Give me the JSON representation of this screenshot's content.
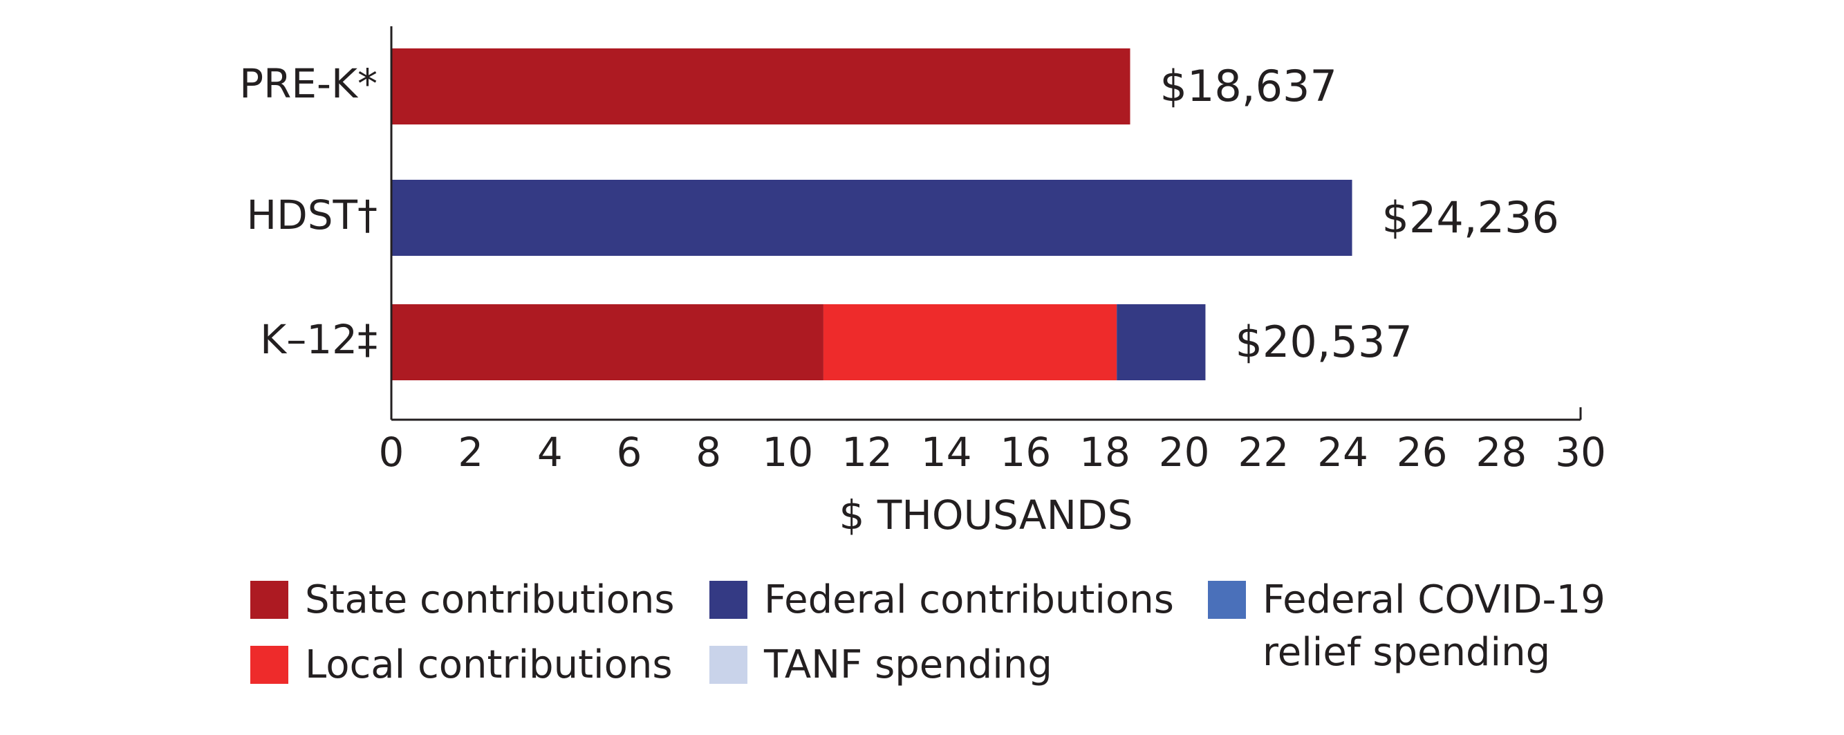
{
  "chart_data": {
    "type": "stacked_barh",
    "categories": [
      "PRE-K*",
      "HDST†",
      "K–12‡"
    ],
    "series": [
      {
        "name": "State contributions",
        "color": "#ad1a22",
        "values": [
          18.637,
          null,
          10.9
        ]
      },
      {
        "name": "Local contributions",
        "color": "#ee2b2b",
        "values": [
          null,
          null,
          7.4
        ]
      },
      {
        "name": "Federal contributions",
        "color": "#343a84",
        "values": [
          null,
          24.236,
          2.237
        ]
      },
      {
        "name": "Federal COVID-19 relief spending",
        "color": "#4a70ba",
        "values": [
          null,
          null,
          null
        ]
      },
      {
        "name": "TANF spending",
        "color": "#c9d3ea",
        "values": [
          null,
          null,
          null
        ]
      }
    ],
    "totals": [
      18.637,
      24.236,
      20.537
    ],
    "total_labels": [
      "$18,637",
      "$24,236",
      "$20,537"
    ],
    "xlabel": "$ THOUSANDS",
    "xlim": [
      0,
      30
    ],
    "xticks": [
      0,
      2,
      4,
      6,
      8,
      10,
      12,
      14,
      16,
      18,
      20,
      22,
      24,
      26,
      28,
      30
    ]
  }
}
